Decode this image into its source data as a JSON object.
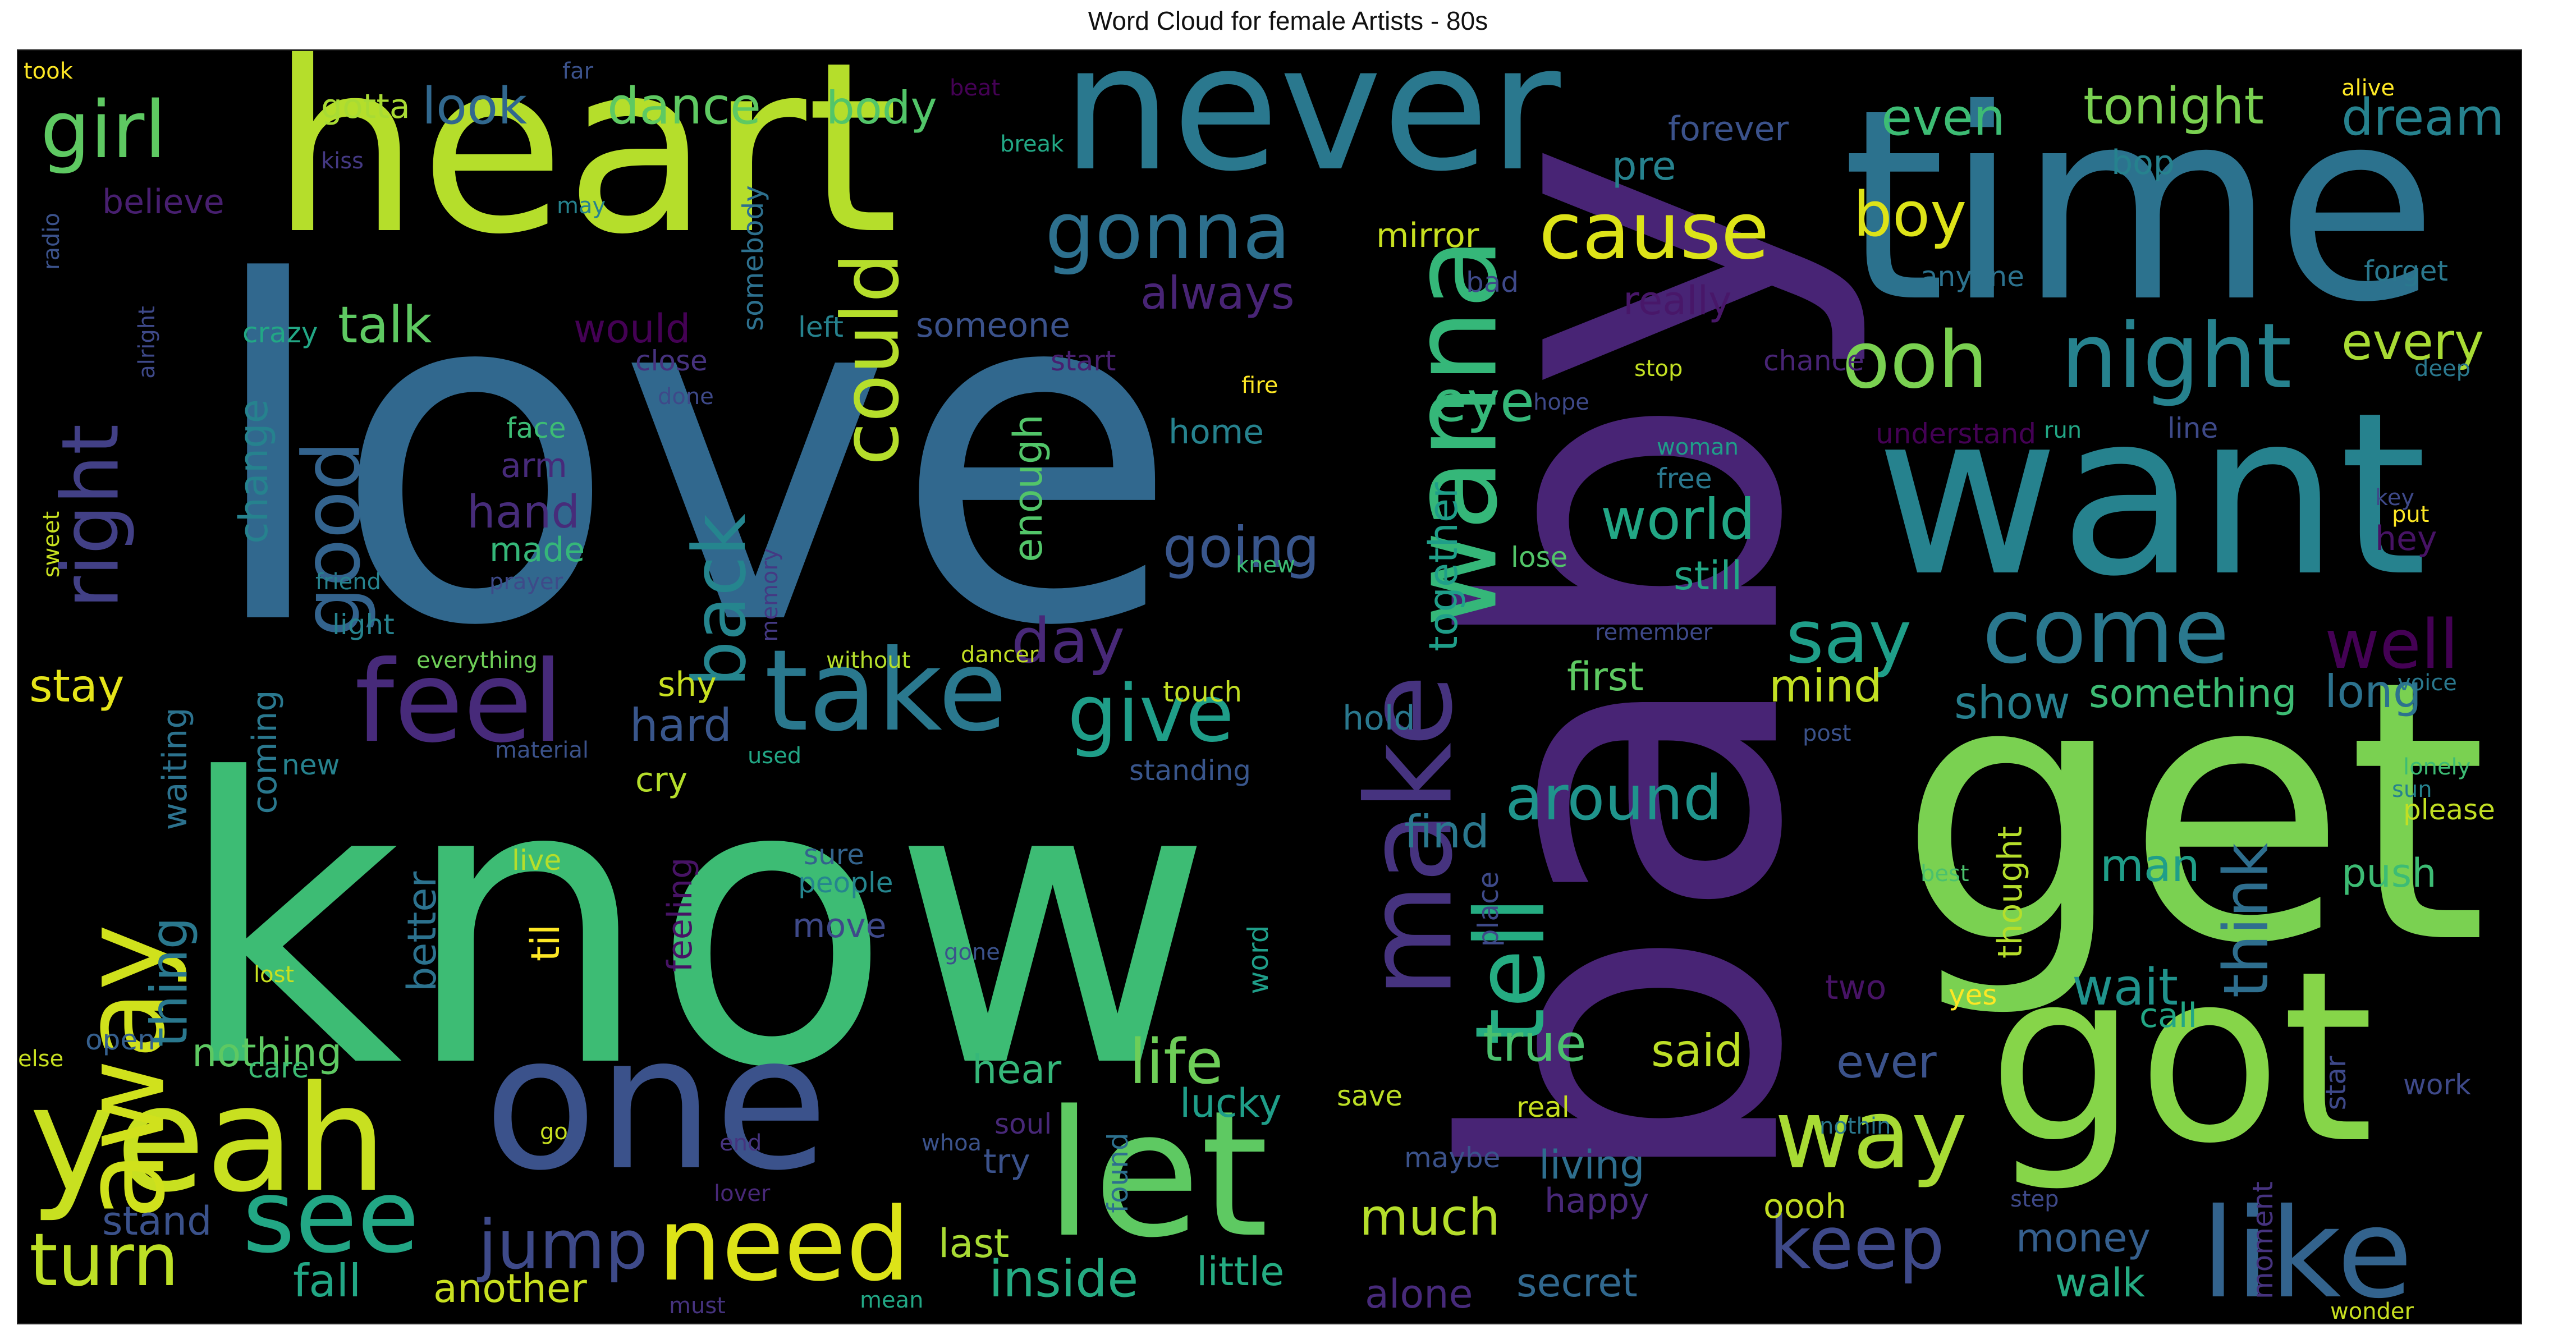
{
  "chart_data": {
    "type": "wordcloud",
    "title": "Word Cloud for female Artists - 80s",
    "background": "#000000",
    "colormap": "viridis",
    "words": [
      {
        "text": "love",
        "color": "#31688e"
      },
      {
        "text": "know",
        "color": "#3dbc74"
      },
      {
        "text": "baby",
        "color": "#482475"
      },
      {
        "text": "get",
        "color": "#7ad151"
      },
      {
        "text": "time",
        "color": "#2c728e"
      },
      {
        "text": "heart",
        "color": "#b5de2b"
      },
      {
        "text": "never",
        "color": "#2a788e"
      },
      {
        "text": "want",
        "color": "#26828e"
      },
      {
        "text": "got",
        "color": "#86d549"
      },
      {
        "text": "one",
        "color": "#3b528b"
      },
      {
        "text": "yeah",
        "color": "#c8e020"
      },
      {
        "text": "let",
        "color": "#5ec962"
      },
      {
        "text": "take",
        "color": "#2a788e"
      },
      {
        "text": "feel",
        "color": "#472a7a"
      },
      {
        "text": "like",
        "color": "#33638d"
      },
      {
        "text": "see",
        "color": "#22a785"
      },
      {
        "text": "away",
        "color": "#d0e11c"
      },
      {
        "text": "make",
        "color": "#46337f"
      },
      {
        "text": "wanna",
        "color": "#35b779"
      },
      {
        "text": "tell",
        "color": "#25ac82"
      },
      {
        "text": "need",
        "color": "#dde318"
      },
      {
        "text": "come",
        "color": "#2a788e"
      },
      {
        "text": "way",
        "color": "#a8db34"
      },
      {
        "text": "give",
        "color": "#1f9e89"
      },
      {
        "text": "gonna",
        "color": "#2d708e"
      },
      {
        "text": "girl",
        "color": "#5ec962"
      },
      {
        "text": "turn",
        "color": "#bddf26"
      },
      {
        "text": "jump",
        "color": "#3e4a89"
      },
      {
        "text": "night",
        "color": "#26828e"
      },
      {
        "text": "ooh",
        "color": "#7ad151"
      },
      {
        "text": "cause",
        "color": "#dde318"
      },
      {
        "text": "right",
        "color": "#424086"
      },
      {
        "text": "good",
        "color": "#33638d"
      },
      {
        "text": "say",
        "color": "#1f9e89"
      },
      {
        "text": "keep",
        "color": "#3e4989"
      },
      {
        "text": "could",
        "color": "#b5de2b"
      },
      {
        "text": "back",
        "color": "#25858e"
      },
      {
        "text": "around",
        "color": "#1f948c"
      },
      {
        "text": "world",
        "color": "#22a785"
      },
      {
        "text": "life",
        "color": "#6ece58"
      },
      {
        "text": "boy",
        "color": "#dde318"
      },
      {
        "text": "eye",
        "color": "#35b779"
      },
      {
        "text": "day",
        "color": "#482878"
      },
      {
        "text": "well",
        "color": "#440154"
      },
      {
        "text": "think",
        "color": "#2e6e8e"
      },
      {
        "text": "dance",
        "color": "#5ec962"
      },
      {
        "text": "look",
        "color": "#31688e"
      },
      {
        "text": "tonight",
        "color": "#7ad151"
      },
      {
        "text": "dream",
        "color": "#26828e"
      },
      {
        "text": "even",
        "color": "#3dbc74"
      },
      {
        "text": "body",
        "color": "#52c569"
      },
      {
        "text": "gotta",
        "color": "#a8db34"
      },
      {
        "text": "talk",
        "color": "#5ec962"
      },
      {
        "text": "thing",
        "color": "#2a788e"
      },
      {
        "text": "going",
        "color": "#39568c"
      },
      {
        "text": "true",
        "color": "#4ac16d"
      },
      {
        "text": "inside",
        "color": "#25ac82"
      },
      {
        "text": "always",
        "color": "#482475"
      },
      {
        "text": "every",
        "color": "#a8db34"
      },
      {
        "text": "find",
        "color": "#2a788e"
      },
      {
        "text": "stay",
        "color": "#e5e419"
      },
      {
        "text": "hard",
        "color": "#39568c"
      },
      {
        "text": "hand",
        "color": "#472c7a"
      },
      {
        "text": "still",
        "color": "#22a785"
      },
      {
        "text": "said",
        "color": "#bddf26"
      },
      {
        "text": "wait",
        "color": "#20928c"
      },
      {
        "text": "mind",
        "color": "#c2df23"
      },
      {
        "text": "show",
        "color": "#277f8e"
      },
      {
        "text": "something",
        "color": "#3dbc74"
      },
      {
        "text": "long",
        "color": "#2c728e"
      },
      {
        "text": "first",
        "color": "#5ec962"
      },
      {
        "text": "nothing",
        "color": "#5ec962"
      },
      {
        "text": "fall",
        "color": "#22a785"
      },
      {
        "text": "another",
        "color": "#c8e020"
      },
      {
        "text": "much",
        "color": "#b5de2b"
      },
      {
        "text": "little",
        "color": "#25ac82"
      },
      {
        "text": "man",
        "color": "#1f9e89"
      },
      {
        "text": "push",
        "color": "#3dbc74"
      },
      {
        "text": "ever",
        "color": "#3b528b"
      },
      {
        "text": "money",
        "color": "#355f8d"
      },
      {
        "text": "walk",
        "color": "#25ac82"
      },
      {
        "text": "secret",
        "color": "#31688e"
      },
      {
        "text": "alone",
        "color": "#472a7a"
      },
      {
        "text": "last",
        "color": "#a8db34"
      },
      {
        "text": "stand",
        "color": "#3b528b"
      },
      {
        "text": "hear",
        "color": "#35b779"
      },
      {
        "text": "lucky",
        "color": "#1f9e89"
      },
      {
        "text": "living",
        "color": "#2e6e8e"
      },
      {
        "text": "happy",
        "color": "#482878"
      },
      {
        "text": "oooh",
        "color": "#c2df23"
      },
      {
        "text": "try",
        "color": "#3b528b"
      },
      {
        "text": "together",
        "color": "#1f9e89"
      },
      {
        "text": "enough",
        "color": "#52c569"
      },
      {
        "text": "change",
        "color": "#26828e"
      },
      {
        "text": "better",
        "color": "#2c728e"
      },
      {
        "text": "waiting",
        "color": "#2c728e"
      },
      {
        "text": "coming",
        "color": "#2a788e"
      },
      {
        "text": "cry",
        "color": "#b5de2b"
      },
      {
        "text": "shy",
        "color": "#c8e020"
      },
      {
        "text": "til",
        "color": "#fde725"
      },
      {
        "text": "feeling",
        "color": "#471365"
      },
      {
        "text": "move",
        "color": "#3e4989"
      },
      {
        "text": "people",
        "color": "#25858e"
      },
      {
        "text": "sure",
        "color": "#33638d"
      },
      {
        "text": "live",
        "color": "#b5de2b"
      },
      {
        "text": "new",
        "color": "#26828e"
      },
      {
        "text": "hold",
        "color": "#2a788e"
      },
      {
        "text": "touch",
        "color": "#c2df23"
      },
      {
        "text": "standing",
        "color": "#39568c"
      },
      {
        "text": "home",
        "color": "#26828e"
      },
      {
        "text": "made",
        "color": "#35b779"
      },
      {
        "text": "arm",
        "color": "#472a7a"
      },
      {
        "text": "face",
        "color": "#3dbc74"
      },
      {
        "text": "crazy",
        "color": "#22a785"
      },
      {
        "text": "would",
        "color": "#440154"
      },
      {
        "text": "somebody",
        "color": "#2d708e"
      },
      {
        "text": "left",
        "color": "#26828e"
      },
      {
        "text": "someone",
        "color": "#3b528b"
      },
      {
        "text": "really",
        "color": "#481769"
      },
      {
        "text": "mirror",
        "color": "#c8e020"
      },
      {
        "text": "pre",
        "color": "#26828e"
      },
      {
        "text": "believe",
        "color": "#481f70"
      },
      {
        "text": "bop",
        "color": "#26828e"
      },
      {
        "text": "forever",
        "color": "#3b528b"
      },
      {
        "text": "anyone",
        "color": "#2c728e"
      },
      {
        "text": "forget",
        "color": "#2a788e"
      },
      {
        "text": "bad",
        "color": "#3e4989"
      },
      {
        "text": "close",
        "color": "#46327e"
      },
      {
        "text": "start",
        "color": "#481f70"
      },
      {
        "text": "chance",
        "color": "#482475"
      },
      {
        "text": "understand",
        "color": "#440154"
      },
      {
        "text": "line",
        "color": "#3e4a89"
      },
      {
        "text": "run",
        "color": "#22a785"
      },
      {
        "text": "free",
        "color": "#2a788e"
      },
      {
        "text": "hey",
        "color": "#471365"
      },
      {
        "text": "lose",
        "color": "#52c569"
      },
      {
        "text": "please",
        "color": "#c2df23"
      },
      {
        "text": "thought",
        "color": "#b5de2b"
      },
      {
        "text": "place",
        "color": "#3e4a89"
      },
      {
        "text": "word",
        "color": "#1f9e89"
      },
      {
        "text": "two",
        "color": "#471365"
      },
      {
        "text": "call",
        "color": "#22a785"
      },
      {
        "text": "yes",
        "color": "#fde725"
      },
      {
        "text": "found",
        "color": "#2d708e"
      },
      {
        "text": "soul",
        "color": "#482878"
      },
      {
        "text": "maybe",
        "color": "#3b528b"
      },
      {
        "text": "save",
        "color": "#bddf26"
      },
      {
        "text": "real",
        "color": "#c8e020"
      },
      {
        "text": "work",
        "color": "#3e4989"
      },
      {
        "text": "star",
        "color": "#3e4989"
      },
      {
        "text": "moment",
        "color": "#46337f"
      },
      {
        "text": "sun",
        "color": "#26828e"
      },
      {
        "text": "lonely",
        "color": "#3dbc74"
      },
      {
        "text": "best",
        "color": "#4ac16d"
      },
      {
        "text": "care",
        "color": "#3dbc74"
      },
      {
        "text": "open",
        "color": "#355f8d"
      },
      {
        "text": "light",
        "color": "#26828e"
      },
      {
        "text": "friend",
        "color": "#26828e"
      },
      {
        "text": "prayer",
        "color": "#3e4a89"
      },
      {
        "text": "memory",
        "color": "#443983"
      },
      {
        "text": "everything",
        "color": "#6ece58"
      },
      {
        "text": "without",
        "color": "#b5de2b"
      },
      {
        "text": "dancer",
        "color": "#c2df23"
      },
      {
        "text": "material",
        "color": "#3b528b"
      },
      {
        "text": "used",
        "color": "#22a785"
      },
      {
        "text": "gone",
        "color": "#3b528b"
      },
      {
        "text": "lost",
        "color": "#c8e020"
      },
      {
        "text": "else",
        "color": "#c8e020"
      },
      {
        "text": "go",
        "color": "#c8e020"
      },
      {
        "text": "end",
        "color": "#46337f"
      },
      {
        "text": "whoa",
        "color": "#3b528b"
      },
      {
        "text": "lover",
        "color": "#482878"
      },
      {
        "text": "must",
        "color": "#46337f"
      },
      {
        "text": "mean",
        "color": "#22a785"
      },
      {
        "text": "took",
        "color": "#fde725"
      },
      {
        "text": "far",
        "color": "#3b528b"
      },
      {
        "text": "beat",
        "color": "#440154"
      },
      {
        "text": "kiss",
        "color": "#443983"
      },
      {
        "text": "may",
        "color": "#26828e"
      },
      {
        "text": "break",
        "color": "#22a785"
      },
      {
        "text": "radio",
        "color": "#3b528b"
      },
      {
        "text": "alright",
        "color": "#3e4989"
      },
      {
        "text": "sweet",
        "color": "#c8e020"
      },
      {
        "text": "done",
        "color": "#3e4989"
      },
      {
        "text": "fire",
        "color": "#fde725"
      },
      {
        "text": "hope",
        "color": "#3e4989"
      },
      {
        "text": "stop",
        "color": "#c2df23"
      },
      {
        "text": "woman",
        "color": "#1f9e89"
      },
      {
        "text": "remember",
        "color": "#3e4989"
      },
      {
        "text": "knew",
        "color": "#3dbc74"
      },
      {
        "text": "post",
        "color": "#3b528b"
      },
      {
        "text": "voice",
        "color": "#2a788e"
      },
      {
        "text": "alive",
        "color": "#fde725"
      },
      {
        "text": "deep",
        "color": "#2a788e"
      },
      {
        "text": "put",
        "color": "#fde725"
      },
      {
        "text": "key",
        "color": "#3e4989"
      },
      {
        "text": "step",
        "color": "#3e4989"
      },
      {
        "text": "wonder",
        "color": "#c8e020"
      },
      {
        "text": "nothin",
        "color": "#2a788e"
      }
    ]
  }
}
